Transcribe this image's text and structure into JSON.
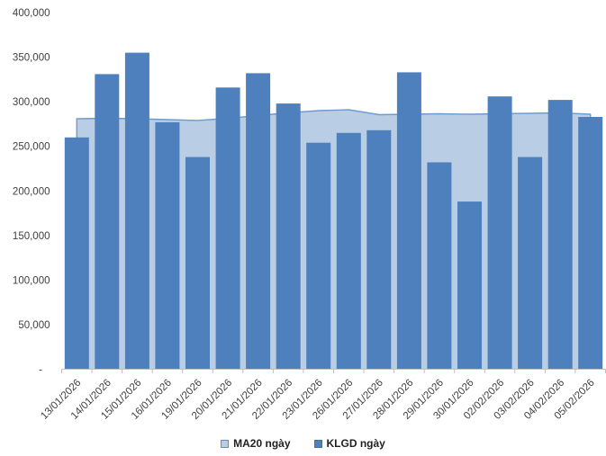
{
  "chart_data": {
    "type": "combo",
    "title": "",
    "xlabel": "",
    "ylabel": "",
    "x": [
      "13/01/2026",
      "14/01/2026",
      "15/01/2026",
      "16/01/2026",
      "19/01/2026",
      "20/01/2026",
      "21/01/2026",
      "22/01/2026",
      "23/01/2026",
      "26/01/2026",
      "27/01/2026",
      "28/01/2026",
      "29/01/2026",
      "30/01/2026",
      "02/02/2026",
      "03/02/2026",
      "04/02/2026",
      "05/02/2026"
    ],
    "series": [
      {
        "name": "MA20 ngày",
        "type": "area",
        "values": [
          281000,
          281500,
          281000,
          280000,
          279000,
          281500,
          284500,
          287500,
          290000,
          291000,
          285500,
          286000,
          286500,
          286000,
          286500,
          287000,
          287500,
          286000
        ]
      },
      {
        "name": "KLGD ngày",
        "type": "bar",
        "values": [
          260000,
          331000,
          355000,
          277000,
          238000,
          316000,
          332000,
          298000,
          254000,
          265000,
          268000,
          333000,
          232000,
          188000,
          306000,
          238000,
          302000,
          283000
        ]
      }
    ],
    "ylim": [
      0,
      400000
    ],
    "ytick_step": 50000,
    "ytick_labels_top_to_bottom": [
      "400,000",
      "350,000",
      "300,000",
      "250,000",
      "200,000",
      "150,000",
      "100,000",
      "50,000",
      "-"
    ],
    "grid": false,
    "legend_position": "bottom",
    "x_label_rotation_deg": -45,
    "colors": {
      "bar_fill": "#4D80BC",
      "area_fill": "#B9CDE5",
      "area_line": "#6E9BCF",
      "axis_line": "#BFBFBF",
      "tick_label_text": "#404040",
      "legend_text": "#1F1F1F",
      "background": "#FFFFFF"
    }
  }
}
